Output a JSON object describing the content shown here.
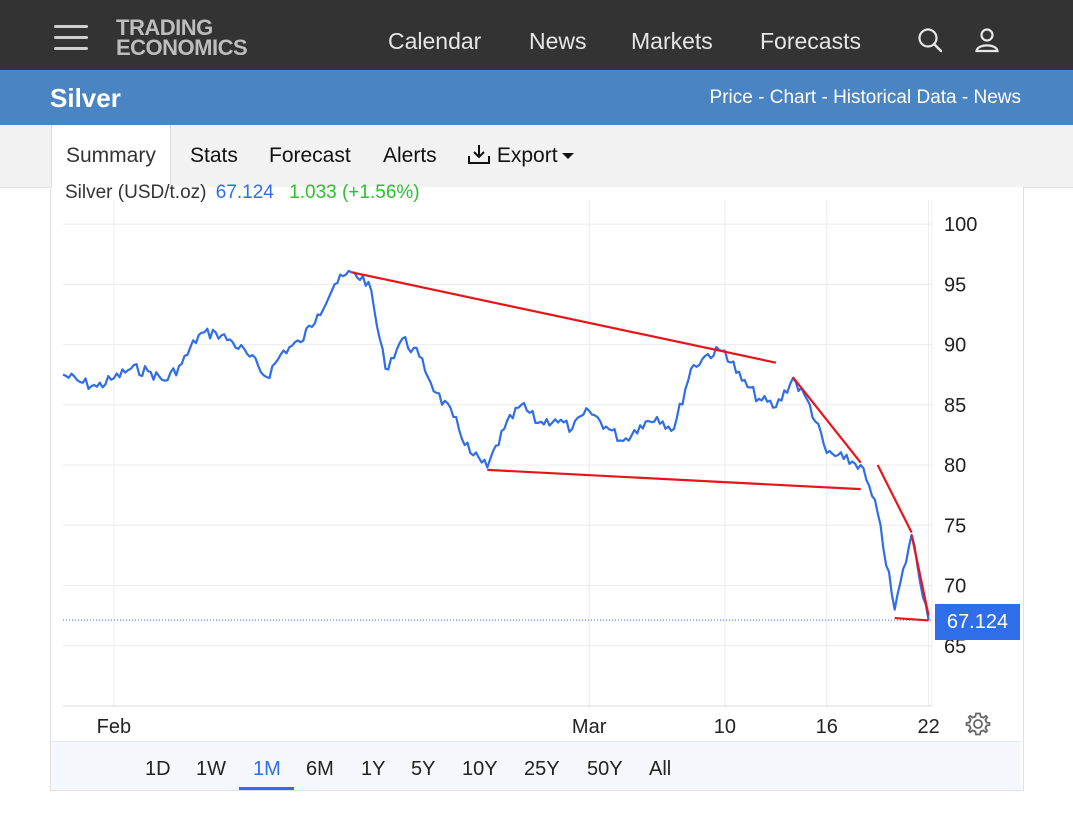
{
  "nav": {
    "logo_line1": "TRADING",
    "logo_line2": "ECONOMICS",
    "links": [
      "Calendar",
      "News",
      "Markets",
      "Forecasts"
    ],
    "search_icon": "search-icon",
    "user_icon": "user-icon"
  },
  "header": {
    "title": "Silver",
    "breadcrumbs": "Price - Chart - Historical Data - News"
  },
  "tabs": {
    "summary": "Summary",
    "stats": "Stats",
    "forecast": "Forecast",
    "alerts": "Alerts",
    "export": "Export"
  },
  "legend": {
    "name": "Silver (USD/t.oz)",
    "price": "67.124",
    "change": "1.033 (+1.56%)"
  },
  "current_price_tag": "67.124",
  "ranges": [
    "1D",
    "1W",
    "1M",
    "6M",
    "1Y",
    "5Y",
    "10Y",
    "25Y",
    "50Y",
    "All"
  ],
  "active_range": "1M",
  "colors": {
    "series": "#2f6ee8",
    "trendlines": "#e8141b",
    "header_bar": "#4a84c2",
    "top_bar": "#333333",
    "change_positive": "#2cc02c"
  },
  "chart_data": {
    "type": "line",
    "title": "",
    "xlabel": "",
    "ylabel": "",
    "ylim": [
      60,
      102
    ],
    "y_ticks": [
      100,
      95,
      90,
      85,
      80,
      75,
      70,
      65
    ],
    "x_tick_labels": [
      {
        "label": "Feb",
        "x": "2026-02-02"
      },
      {
        "label": "Mar",
        "x": "2026-03-02"
      },
      {
        "label": "10",
        "x": "2026-03-10"
      },
      {
        "label": "16",
        "x": "2026-03-16"
      },
      {
        "label": "22",
        "x": "2026-03-22"
      }
    ],
    "grid": true,
    "series": [
      {
        "values_note": "approximate silver price readings, late Jan to Mar 22",
        "points": [
          [
            "2026-01-30",
            87.5
          ],
          [
            "2026-01-31",
            86.9
          ],
          [
            "2026-02-01",
            86.5
          ],
          [
            "2026-02-02",
            87.2
          ],
          [
            "2026-02-03",
            88.0
          ],
          [
            "2026-02-04",
            87.8
          ],
          [
            "2026-02-05",
            87.0
          ],
          [
            "2026-02-06",
            88.4
          ],
          [
            "2026-02-07",
            90.8
          ],
          [
            "2026-02-08",
            91.0
          ],
          [
            "2026-02-09",
            90.2
          ],
          [
            "2026-02-10",
            89.0
          ],
          [
            "2026-02-11",
            87.3
          ],
          [
            "2026-02-12",
            89.5
          ],
          [
            "2026-02-13",
            90.2
          ],
          [
            "2026-02-14",
            92.5
          ],
          [
            "2026-02-15",
            95.0
          ],
          [
            "2026-02-16",
            96.0
          ],
          [
            "2026-02-17",
            95.2
          ],
          [
            "2026-02-18",
            88.0
          ],
          [
            "2026-02-19",
            90.5
          ],
          [
            "2026-02-20",
            89.0
          ],
          [
            "2026-02-21",
            86.0
          ],
          [
            "2026-02-22",
            84.0
          ],
          [
            "2026-02-23",
            81.0
          ],
          [
            "2026-02-24",
            79.8
          ],
          [
            "2026-02-25",
            83.0
          ],
          [
            "2026-02-26",
            85.0
          ],
          [
            "2026-02-27",
            83.5
          ],
          [
            "2026-02-28",
            83.8
          ],
          [
            "2026-03-01",
            83.0
          ],
          [
            "2026-03-02",
            84.5
          ],
          [
            "2026-03-03",
            83.2
          ],
          [
            "2026-03-04",
            82.0
          ],
          [
            "2026-03-05",
            83.3
          ],
          [
            "2026-03-06",
            84.0
          ],
          [
            "2026-03-07",
            83.0
          ],
          [
            "2026-03-08",
            88.0
          ],
          [
            "2026-03-09",
            89.2
          ],
          [
            "2026-03-10",
            89.5
          ],
          [
            "2026-03-11",
            87.0
          ],
          [
            "2026-03-12",
            85.5
          ],
          [
            "2026-03-13",
            84.8
          ],
          [
            "2026-03-14",
            87.2
          ],
          [
            "2026-03-15",
            85.0
          ],
          [
            "2026-03-16",
            81.0
          ],
          [
            "2026-03-17",
            80.5
          ],
          [
            "2026-03-18",
            80.0
          ],
          [
            "2026-03-19",
            76.0
          ],
          [
            "2026-03-20",
            68.0
          ],
          [
            "2026-03-21",
            74.2
          ],
          [
            "2026-03-22",
            67.124
          ]
        ]
      }
    ],
    "current_value": 67.124,
    "trendlines": [
      {
        "from": [
          "2026-02-16",
          96.0
        ],
        "to": [
          "2026-03-13",
          88.5
        ]
      },
      {
        "from": [
          "2026-02-24",
          79.6
        ],
        "to": [
          "2026-03-18",
          78.0
        ]
      },
      {
        "from": [
          "2026-03-14",
          87.3
        ],
        "to": [
          "2026-03-18",
          80.2
        ]
      },
      {
        "from": [
          "2026-03-19",
          80.0
        ],
        "to": [
          "2026-03-21",
          74.4
        ]
      },
      {
        "from": [
          "2026-03-21",
          74.2
        ],
        "to": [
          "2026-03-22",
          67.5
        ]
      },
      {
        "from": [
          "2026-03-20",
          67.3
        ],
        "to": [
          "2026-03-22",
          67.1
        ]
      }
    ]
  }
}
